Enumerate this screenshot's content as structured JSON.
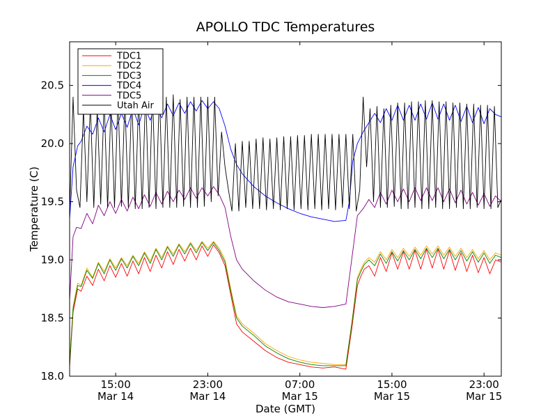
{
  "chart_data": {
    "type": "line",
    "title": "APOLLO TDC Temperatures",
    "xlabel": "Date (GMT)",
    "ylabel": "Temperature (C)",
    "x_unit": "hours since Mar 14 11:00 GMT",
    "xlim": [
      0,
      37.5
    ],
    "ylim": [
      18.0,
      20.875
    ],
    "grid": false,
    "legend_position": "top-left",
    "y_ticks": [
      {
        "value": 18.0,
        "label": "18.0"
      },
      {
        "value": 18.5,
        "label": "18.5"
      },
      {
        "value": 19.0,
        "label": "19.0"
      },
      {
        "value": 19.5,
        "label": "19.5"
      },
      {
        "value": 20.0,
        "label": "20.0"
      },
      {
        "value": 20.5,
        "label": "20.5"
      }
    ],
    "x_ticks": [
      {
        "value": 4,
        "time": "15:00",
        "date": "Mar 14"
      },
      {
        "value": 12,
        "time": "23:00",
        "date": "Mar 14"
      },
      {
        "value": 20,
        "time": "07:00",
        "date": "Mar 15"
      },
      {
        "value": 28,
        "time": "15:00",
        "date": "Mar 15"
      },
      {
        "value": 36,
        "time": "23:00",
        "date": "Mar 15"
      }
    ],
    "series": [
      {
        "name": "TDC1",
        "color": "#ff0000",
        "x": [
          0,
          0.3,
          0.7,
          1,
          1.5,
          2,
          2.5,
          3,
          3.5,
          4,
          4.5,
          5,
          5.5,
          6,
          6.5,
          7,
          7.5,
          8,
          8.5,
          9,
          9.5,
          10,
          10.5,
          11,
          11.5,
          12,
          12.5,
          13,
          13.5,
          14,
          14.5,
          15,
          16,
          17,
          18,
          19,
          20,
          21,
          22,
          23,
          24,
          24.5,
          25,
          25.3,
          25.6,
          26,
          26.5,
          27,
          27.5,
          28,
          28.5,
          29,
          29.5,
          30,
          30.5,
          31,
          31.5,
          32,
          32.5,
          33,
          33.5,
          34,
          34.5,
          35,
          35.5,
          36,
          36.5,
          37,
          37.5
        ],
        "y": [
          18.08,
          18.55,
          18.75,
          18.73,
          18.86,
          18.78,
          18.92,
          18.82,
          18.95,
          18.85,
          18.97,
          18.86,
          18.99,
          18.88,
          19.02,
          18.9,
          19.04,
          18.93,
          19.07,
          18.96,
          19.09,
          18.99,
          19.1,
          19.0,
          19.12,
          19.03,
          19.13,
          19.06,
          18.95,
          18.7,
          18.45,
          18.38,
          18.3,
          18.22,
          18.16,
          18.12,
          18.1,
          18.08,
          18.07,
          18.08,
          18.06,
          18.4,
          18.78,
          18.86,
          18.92,
          18.95,
          18.86,
          19.02,
          18.9,
          19.06,
          18.92,
          19.07,
          18.92,
          19.08,
          18.92,
          19.09,
          18.93,
          19.09,
          18.92,
          19.08,
          18.91,
          19.06,
          18.9,
          19.04,
          18.89,
          19.02,
          18.88,
          19.0,
          18.98
        ]
      },
      {
        "name": "TDC2",
        "color": "#ffa500",
        "x": [
          0,
          0.3,
          0.7,
          1,
          1.5,
          2,
          2.5,
          3,
          3.5,
          4,
          4.5,
          5,
          5.5,
          6,
          6.5,
          7,
          7.5,
          8,
          8.5,
          9,
          9.5,
          10,
          10.5,
          11,
          11.5,
          12,
          12.5,
          13,
          13.5,
          14,
          14.5,
          15,
          16,
          17,
          18,
          19,
          20,
          21,
          22,
          23,
          24,
          24.5,
          25,
          25.3,
          25.6,
          26,
          26.5,
          27,
          27.5,
          28,
          28.5,
          29,
          29.5,
          30,
          30.5,
          31,
          31.5,
          32,
          32.5,
          33,
          33.5,
          34,
          34.5,
          35,
          35.5,
          36,
          36.5,
          37,
          37.5
        ],
        "y": [
          18.12,
          18.6,
          18.8,
          18.78,
          18.93,
          18.85,
          18.98,
          18.9,
          19.01,
          18.93,
          19.02,
          18.95,
          19.04,
          18.97,
          19.07,
          18.99,
          19.1,
          19.02,
          19.12,
          19.05,
          19.14,
          19.07,
          19.15,
          19.08,
          19.16,
          19.1,
          19.16,
          19.1,
          19.0,
          18.75,
          18.52,
          18.45,
          18.37,
          18.28,
          18.22,
          18.17,
          18.14,
          18.12,
          18.11,
          18.1,
          18.1,
          18.45,
          18.85,
          18.92,
          18.98,
          19.02,
          18.98,
          19.07,
          19.0,
          19.09,
          19.02,
          19.1,
          19.03,
          19.11,
          19.04,
          19.12,
          19.05,
          19.12,
          19.04,
          19.11,
          19.03,
          19.1,
          19.02,
          19.09,
          19.01,
          19.08,
          19.0,
          19.06,
          19.04
        ]
      },
      {
        "name": "TDC3",
        "color": "#008000",
        "x": [
          0,
          0.3,
          0.7,
          1,
          1.5,
          2,
          2.5,
          3,
          3.5,
          4,
          4.5,
          5,
          5.5,
          6,
          6.5,
          7,
          7.5,
          8,
          8.5,
          9,
          9.5,
          10,
          10.5,
          11,
          11.5,
          12,
          12.5,
          13,
          13.5,
          14,
          14.5,
          15,
          16,
          17,
          18,
          19,
          20,
          21,
          22,
          23,
          24,
          24.5,
          25,
          25.3,
          25.6,
          26,
          26.5,
          27,
          27.5,
          28,
          28.5,
          29,
          29.5,
          30,
          30.5,
          31,
          31.5,
          32,
          32.5,
          33,
          33.5,
          34,
          34.5,
          35,
          35.5,
          36,
          36.5,
          37,
          37.5
        ],
        "y": [
          18.1,
          18.58,
          18.78,
          18.77,
          18.91,
          18.84,
          18.97,
          18.88,
          19.0,
          18.91,
          19.01,
          18.93,
          19.03,
          18.95,
          19.06,
          18.97,
          19.09,
          19.0,
          19.11,
          19.03,
          19.13,
          19.05,
          19.14,
          19.06,
          19.15,
          19.08,
          19.15,
          19.08,
          18.98,
          18.73,
          18.5,
          18.43,
          18.35,
          18.26,
          18.2,
          18.15,
          18.12,
          18.1,
          18.09,
          18.09,
          18.09,
          18.44,
          18.83,
          18.9,
          18.96,
          19.0,
          18.95,
          19.05,
          18.97,
          19.07,
          18.99,
          19.08,
          19.0,
          19.09,
          19.01,
          19.1,
          19.02,
          19.1,
          19.01,
          19.09,
          19.0,
          19.08,
          18.99,
          19.07,
          18.98,
          19.06,
          18.97,
          19.04,
          19.02
        ]
      },
      {
        "name": "TDC4",
        "color": "#0000ff",
        "x": [
          0,
          0.3,
          0.7,
          1,
          1.5,
          2,
          2.5,
          3,
          3.5,
          4,
          4.5,
          5,
          5.5,
          6,
          6.5,
          7,
          7.5,
          8,
          8.5,
          9,
          9.5,
          10,
          10.5,
          11,
          11.5,
          12,
          12.5,
          13,
          13.5,
          14,
          14.5,
          15,
          16,
          17,
          18,
          19,
          20,
          21,
          22,
          23,
          24,
          24.3,
          24.6,
          25,
          25.5,
          26,
          26.5,
          27,
          27.5,
          28,
          28.5,
          29,
          29.5,
          30,
          30.5,
          31,
          31.5,
          32,
          32.5,
          33,
          33.5,
          34,
          34.5,
          35,
          35.5,
          36,
          36.5,
          37,
          37.5
        ],
        "y": [
          19.35,
          19.8,
          19.98,
          20.02,
          20.15,
          20.08,
          20.22,
          20.1,
          20.25,
          20.12,
          20.26,
          20.14,
          20.3,
          20.16,
          20.32,
          20.2,
          20.34,
          20.22,
          20.34,
          20.24,
          20.35,
          20.26,
          20.36,
          20.28,
          20.37,
          20.3,
          20.36,
          20.3,
          20.15,
          19.95,
          19.82,
          19.74,
          19.63,
          19.55,
          19.49,
          19.44,
          19.4,
          19.37,
          19.35,
          19.33,
          19.34,
          19.5,
          19.85,
          20.0,
          20.1,
          20.18,
          20.26,
          20.18,
          20.3,
          20.2,
          20.33,
          20.2,
          20.33,
          20.2,
          20.34,
          20.21,
          20.35,
          20.21,
          20.34,
          20.2,
          20.33,
          20.19,
          20.32,
          20.18,
          20.31,
          20.17,
          20.3,
          20.25,
          20.23
        ]
      },
      {
        "name": "TDC5",
        "color": "#800080",
        "x": [
          0,
          0.3,
          0.6,
          1,
          1.5,
          2,
          2.5,
          3,
          3.5,
          4,
          4.5,
          5,
          5.5,
          6,
          6.5,
          7,
          7.5,
          8,
          8.5,
          9,
          9.5,
          10,
          10.5,
          11,
          11.5,
          12,
          12.5,
          13,
          13.5,
          14,
          14.5,
          15,
          16,
          17,
          18,
          19,
          20,
          21,
          22,
          23,
          24,
          24.5,
          25,
          25.5,
          26,
          26.5,
          27,
          27.5,
          28,
          28.5,
          29,
          29.5,
          30,
          30.5,
          31,
          31.5,
          32,
          32.5,
          33,
          33.5,
          34,
          34.5,
          35,
          35.5,
          36,
          36.5,
          37,
          37.5
        ],
        "y": [
          18.65,
          19.2,
          19.28,
          19.27,
          19.4,
          19.31,
          19.47,
          19.38,
          19.5,
          19.4,
          19.52,
          19.42,
          19.54,
          19.44,
          19.56,
          19.46,
          19.58,
          19.48,
          19.59,
          19.5,
          19.6,
          19.52,
          19.62,
          19.53,
          19.62,
          19.55,
          19.63,
          19.56,
          19.45,
          19.2,
          19.0,
          18.92,
          18.82,
          18.74,
          18.68,
          18.64,
          18.62,
          18.6,
          18.59,
          18.6,
          18.62,
          19.0,
          19.38,
          19.44,
          19.52,
          19.45,
          19.58,
          19.48,
          19.6,
          19.5,
          19.61,
          19.5,
          19.62,
          19.51,
          19.62,
          19.51,
          19.62,
          19.5,
          19.61,
          19.49,
          19.6,
          19.48,
          19.58,
          19.47,
          19.57,
          19.46,
          19.55,
          19.5
        ]
      },
      {
        "name": "Utah Air",
        "color": "#000000",
        "x": [
          0,
          0.3,
          0.6,
          0.9,
          1.2,
          1.5,
          1.8,
          2.1,
          2.4,
          2.7,
          3.0,
          3.3,
          3.6,
          3.9,
          4.2,
          4.5,
          4.8,
          5.1,
          5.4,
          5.7,
          6.0,
          6.3,
          6.6,
          6.9,
          7.2,
          7.5,
          7.8,
          8.1,
          8.4,
          8.7,
          9.0,
          9.3,
          9.6,
          9.9,
          10.2,
          10.5,
          10.8,
          11.1,
          11.4,
          11.7,
          12.0,
          12.3,
          12.6,
          12.9,
          13.2,
          13.5,
          13.8,
          14.1,
          14.4,
          14.7,
          15.0,
          15.3,
          15.6,
          15.9,
          16.2,
          16.5,
          16.8,
          17.1,
          17.4,
          17.7,
          18.0,
          18.3,
          18.6,
          18.9,
          19.2,
          19.5,
          19.8,
          20.1,
          20.4,
          20.7,
          21.0,
          21.3,
          21.6,
          21.9,
          22.2,
          22.5,
          22.8,
          23.1,
          23.4,
          23.7,
          24.0,
          24.3,
          24.6,
          24.9,
          25.2,
          25.5,
          25.8,
          26.1,
          26.4,
          26.7,
          27.0,
          27.3,
          27.6,
          27.9,
          28.2,
          28.5,
          28.8,
          29.1,
          29.4,
          29.7,
          30.0,
          30.3,
          30.6,
          30.9,
          31.2,
          31.5,
          31.8,
          32.1,
          32.4,
          32.7,
          33.0,
          33.3,
          33.6,
          33.9,
          34.2,
          34.5,
          34.8,
          35.1,
          35.4,
          35.7,
          36.0,
          36.3,
          36.6,
          36.9,
          37.2,
          37.5
        ],
        "y": [
          19.4,
          20.4,
          19.6,
          19.45,
          20.3,
          19.5,
          20.35,
          19.45,
          20.3,
          19.48,
          20.38,
          19.45,
          20.35,
          19.45,
          20.4,
          19.46,
          20.38,
          19.45,
          20.42,
          19.44,
          20.4,
          19.44,
          20.45,
          19.45,
          20.45,
          19.44,
          20.45,
          19.45,
          20.4,
          19.45,
          20.42,
          19.45,
          20.38,
          19.46,
          20.4,
          19.45,
          20.4,
          19.45,
          20.4,
          19.46,
          20.4,
          19.5,
          20.4,
          19.55,
          20.1,
          19.8,
          19.6,
          19.42,
          20.0,
          19.42,
          20.02,
          19.45,
          20.02,
          19.44,
          20.04,
          19.44,
          20.05,
          19.43,
          20.04,
          19.44,
          20.05,
          19.43,
          20.06,
          19.44,
          20.06,
          19.43,
          20.07,
          19.44,
          20.07,
          19.43,
          20.08,
          19.44,
          20.08,
          19.43,
          20.08,
          19.44,
          20.08,
          19.43,
          20.08,
          19.45,
          20.08,
          19.44,
          20.08,
          19.42,
          19.6,
          20.4,
          19.8,
          20.3,
          19.5,
          20.32,
          19.45,
          20.3,
          19.45,
          20.33,
          19.46,
          20.35,
          19.44,
          20.35,
          19.44,
          20.36,
          19.45,
          20.36,
          19.44,
          20.37,
          19.44,
          20.37,
          19.45,
          20.36,
          19.44,
          20.36,
          19.44,
          20.35,
          19.45,
          20.35,
          19.44,
          20.34,
          19.44,
          20.34,
          19.45,
          20.33,
          19.44,
          20.33,
          19.44,
          20.32,
          19.45,
          19.52
        ]
      }
    ]
  }
}
